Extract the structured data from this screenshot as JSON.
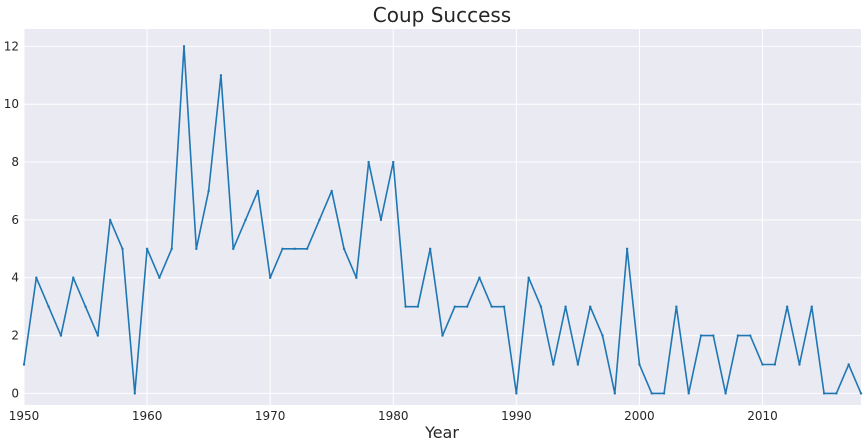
{
  "chart_data": {
    "type": "line",
    "title": "Coup Success",
    "xlabel": "Year",
    "ylabel": "",
    "xlim": [
      1950,
      2018
    ],
    "ylim": [
      -0.4,
      12.6
    ],
    "xticks": [
      1950,
      1960,
      1970,
      1980,
      1990,
      2000,
      2010
    ],
    "yticks": [
      0,
      2,
      4,
      6,
      8,
      10,
      12
    ],
    "grid": true,
    "background": "#EAEAF2",
    "grid_color": "#FFFFFF",
    "line_color": "#1F77B4",
    "x": [
      1950,
      1951,
      1952,
      1953,
      1954,
      1955,
      1956,
      1957,
      1958,
      1959,
      1960,
      1961,
      1962,
      1963,
      1964,
      1965,
      1966,
      1967,
      1968,
      1969,
      1970,
      1971,
      1972,
      1973,
      1974,
      1975,
      1976,
      1977,
      1978,
      1979,
      1980,
      1981,
      1982,
      1983,
      1984,
      1985,
      1986,
      1987,
      1988,
      1989,
      1990,
      1991,
      1992,
      1993,
      1994,
      1995,
      1996,
      1997,
      1998,
      1999,
      2000,
      2001,
      2002,
      2003,
      2004,
      2005,
      2006,
      2007,
      2008,
      2009,
      2010,
      2011,
      2012,
      2013,
      2014,
      2015,
      2016,
      2017,
      2018
    ],
    "series": [
      {
        "values": [
          1,
          4,
          3,
          2,
          4,
          3,
          2,
          6,
          5,
          0,
          5,
          4,
          5,
          12,
          5,
          7,
          11,
          5,
          6,
          7,
          4,
          5,
          5,
          5,
          6,
          7,
          5,
          4,
          8,
          6,
          8,
          3,
          3,
          5,
          2,
          3,
          3,
          4,
          3,
          3,
          0,
          4,
          3,
          1,
          3,
          1,
          3,
          2,
          0,
          5,
          1,
          0,
          0,
          3,
          0,
          2,
          2,
          0,
          2,
          2,
          1,
          1,
          3,
          1,
          3,
          0,
          0,
          1,
          0
        ]
      }
    ]
  }
}
